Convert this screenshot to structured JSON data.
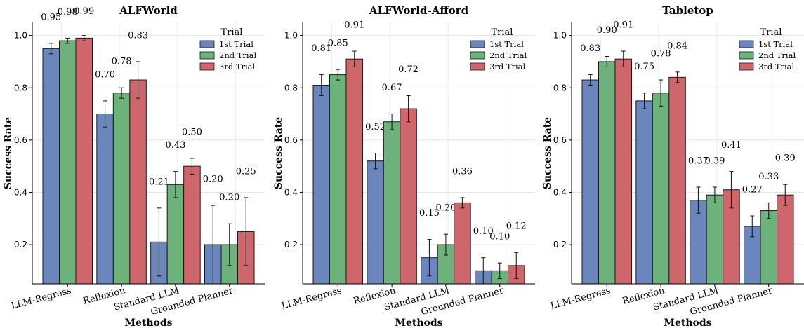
{
  "chart_data": [
    {
      "type": "bar",
      "title": "ALFWorld",
      "xlabel": "Methods",
      "ylabel": "Success Rate",
      "ylim": [
        0.05,
        1.05
      ],
      "yticks": [
        "0.2",
        "0.4",
        "0.6",
        "0.8",
        "1.0"
      ],
      "grid": true,
      "legend_title": "Trial",
      "legend_position": "top-right",
      "categories": [
        "LLM-Regress",
        "Reflexion",
        "Standard LLM",
        "Grounded Planner"
      ],
      "series": [
        {
          "name": "1st Trial",
          "color": "#6a86bc",
          "values": [
            0.95,
            0.7,
            0.21,
            0.2
          ],
          "errors": [
            0.02,
            0.05,
            0.13,
            0.15
          ],
          "labels": [
            "0.95",
            "0.70",
            "0.21",
            "0.20"
          ]
        },
        {
          "name": "2nd Trial",
          "color": "#6cb27a",
          "values": [
            0.98,
            0.78,
            0.43,
            0.2
          ],
          "errors": [
            0.01,
            0.02,
            0.05,
            0.08
          ],
          "labels": [
            "0.98",
            "0.78",
            "0.43",
            "0.20"
          ]
        },
        {
          "name": "3rd Trial",
          "color": "#cf666c",
          "values": [
            0.99,
            0.83,
            0.5,
            0.25
          ],
          "errors": [
            0.01,
            0.07,
            0.03,
            0.13
          ],
          "labels": [
            "0.99",
            "0.83",
            "0.50",
            "0.25"
          ]
        }
      ]
    },
    {
      "type": "bar",
      "title": "ALFWorld-Afford",
      "xlabel": "Methods",
      "ylabel": "Success Rate",
      "ylim": [
        0.05,
        1.05
      ],
      "yticks": [
        "0.2",
        "0.4",
        "0.6",
        "0.8",
        "1.0"
      ],
      "grid": true,
      "legend_title": "Trial",
      "legend_position": "top-right",
      "categories": [
        "LLM-Regress",
        "Reflexion",
        "Standard LLM",
        "Grounded Planner"
      ],
      "series": [
        {
          "name": "1st Trial",
          "color": "#6a86bc",
          "values": [
            0.81,
            0.52,
            0.15,
            0.1
          ],
          "errors": [
            0.04,
            0.03,
            0.07,
            0.05
          ],
          "labels": [
            "0.81",
            "0.52",
            "0.15",
            "0.10"
          ]
        },
        {
          "name": "2nd Trial",
          "color": "#6cb27a",
          "values": [
            0.85,
            0.67,
            0.2,
            0.1
          ],
          "errors": [
            0.02,
            0.03,
            0.04,
            0.03
          ],
          "labels": [
            "0.85",
            "0.67",
            "0.20",
            "0.10"
          ]
        },
        {
          "name": "3rd Trial",
          "color": "#cf666c",
          "values": [
            0.91,
            0.72,
            0.36,
            0.12
          ],
          "errors": [
            0.03,
            0.05,
            0.02,
            0.05
          ],
          "labels": [
            "0.91",
            "0.72",
            "0.36",
            "0.12"
          ]
        }
      ]
    },
    {
      "type": "bar",
      "title": "Tabletop",
      "xlabel": "Methods",
      "ylabel": "Success Rate",
      "ylim": [
        0.05,
        1.05
      ],
      "yticks": [
        "0.2",
        "0.4",
        "0.6",
        "0.8",
        "1.0"
      ],
      "grid": true,
      "legend_title": "Trial",
      "legend_position": "top-right",
      "categories": [
        "LLM-Regress",
        "Reflexion",
        "Standard LLM",
        "Grounded Planner"
      ],
      "series": [
        {
          "name": "1st Trial",
          "color": "#6a86bc",
          "values": [
            0.83,
            0.75,
            0.37,
            0.27
          ],
          "errors": [
            0.02,
            0.03,
            0.05,
            0.04
          ],
          "labels": [
            "0.83",
            "0.75",
            "0.37",
            "0.27"
          ]
        },
        {
          "name": "2nd Trial",
          "color": "#6cb27a",
          "values": [
            0.9,
            0.78,
            0.39,
            0.33
          ],
          "errors": [
            0.02,
            0.05,
            0.03,
            0.03
          ],
          "labels": [
            "0.90",
            "0.78",
            "0.39",
            "0.33"
          ]
        },
        {
          "name": "3rd Trial",
          "color": "#cf666c",
          "values": [
            0.91,
            0.84,
            0.41,
            0.39
          ],
          "errors": [
            0.03,
            0.02,
            0.07,
            0.04
          ],
          "labels": [
            "0.91",
            "0.84",
            "0.41",
            "0.39"
          ]
        }
      ]
    }
  ]
}
